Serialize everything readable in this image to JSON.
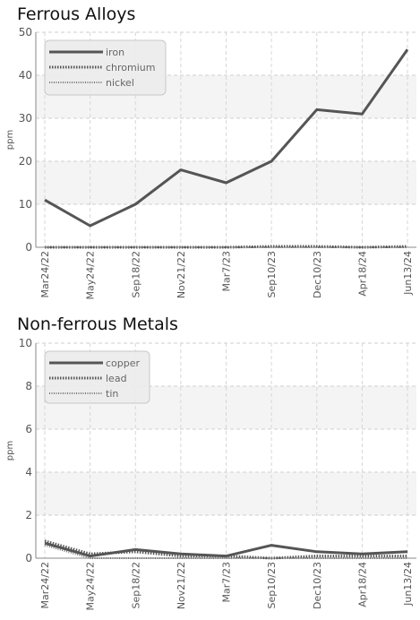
{
  "chart_data": [
    {
      "type": "line",
      "title": "Ferrous Alloys",
      "xlabel": "",
      "ylabel": "ppm",
      "ylim": [
        0,
        50
      ],
      "yticks": [
        0,
        10,
        20,
        30,
        40,
        50
      ],
      "grid": true,
      "legend_position": "top-left",
      "categories": [
        "Mar24/22",
        "May24/22",
        "Sep18/22",
        "Nov21/22",
        "Mar7/23",
        "Sep10/23",
        "Dec10/23",
        "Apr18/24",
        "Jun13/24"
      ],
      "series": [
        {
          "name": "iron",
          "style": "solid",
          "color": "#555555",
          "values": [
            11,
            5,
            10,
            18,
            15,
            20,
            32,
            31,
            46
          ]
        },
        {
          "name": "chromium",
          "style": "dotted",
          "color": "#555555",
          "values": [
            0,
            0,
            0,
            0,
            0,
            0.2,
            0.2,
            0,
            0.2
          ]
        },
        {
          "name": "nickel",
          "style": "thin-dotted",
          "color": "#777777",
          "values": [
            0,
            0,
            0,
            0,
            0,
            0,
            0,
            0,
            0
          ]
        }
      ]
    },
    {
      "type": "line",
      "title": "Non-ferrous Metals",
      "xlabel": "",
      "ylabel": "ppm",
      "ylim": [
        0,
        10
      ],
      "yticks": [
        0,
        2,
        4,
        6,
        8,
        10
      ],
      "grid": true,
      "legend_position": "top-left",
      "categories": [
        "Mar24/22",
        "May24/22",
        "Sep18/22",
        "Nov21/22",
        "Mar7/23",
        "Sep10/23",
        "Dec10/23",
        "Apr18/24",
        "Jun13/24"
      ],
      "series": [
        {
          "name": "copper",
          "style": "solid",
          "color": "#555555",
          "values": [
            0.7,
            0.1,
            0.4,
            0.2,
            0.1,
            0.6,
            0.3,
            0.2,
            0.3
          ]
        },
        {
          "name": "lead",
          "style": "dotted",
          "color": "#555555",
          "values": [
            0.8,
            0.2,
            0.3,
            0.1,
            0.1,
            0,
            0.1,
            0.1,
            0.1
          ]
        },
        {
          "name": "tin",
          "style": "thin-dotted",
          "color": "#777777",
          "values": [
            0.6,
            0,
            0,
            0,
            0,
            0,
            0,
            0,
            0
          ]
        }
      ]
    }
  ]
}
